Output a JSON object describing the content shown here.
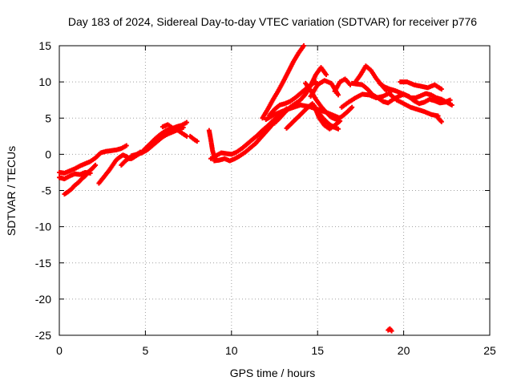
{
  "chart_data": {
    "type": "scatter",
    "title": "Day 183 of 2024, Sidereal Day-to-day VTEC variation (SDTVAR) for receiver p776",
    "xlabel": "GPS time / hours",
    "ylabel": "SDTVAR / TECUs",
    "xlim": [
      0,
      25
    ],
    "ylim": [
      -25,
      15
    ],
    "x_ticks": [
      0,
      5,
      10,
      15,
      20,
      25
    ],
    "x_tick_labels": [
      "0",
      "5",
      "10",
      "15",
      "20",
      "25"
    ],
    "y_ticks": [
      -25,
      -20,
      -15,
      -10,
      -5,
      0,
      5,
      10,
      15
    ],
    "y_tick_labels": [
      "-25",
      "-20",
      "-15",
      "-10",
      "-5",
      "0",
      "5",
      "10",
      "15"
    ],
    "grid": true,
    "legend": "none",
    "marker": "cross",
    "series_color": "#ff0000",
    "series": [
      {
        "x": [
          0.0,
          0.3,
          0.6,
          0.9,
          1.2,
          1.5,
          1.8,
          2.1,
          2.4,
          2.7,
          3.0,
          3.3,
          3.6,
          3.9
        ],
        "y": [
          -2.5,
          -2.6,
          -2.3,
          -2.0,
          -1.6,
          -1.3,
          -1.0,
          -0.5,
          0.2,
          0.4,
          0.5,
          0.6,
          0.8,
          1.2
        ]
      },
      {
        "x": [
          0.0,
          0.3,
          0.6,
          0.9,
          1.2,
          1.5,
          1.8
        ],
        "y": [
          -3.2,
          -3.4,
          -3.0,
          -2.7,
          -2.8,
          -2.5,
          -2.6
        ]
      },
      {
        "x": [
          0.3,
          0.5,
          0.7,
          0.9,
          1.1,
          1.3,
          1.5,
          1.7,
          1.9,
          2.1
        ],
        "y": [
          -5.5,
          -5.2,
          -4.8,
          -4.3,
          -3.9,
          -3.4,
          -3.0,
          -2.4,
          -2.0,
          -1.5
        ]
      },
      {
        "x": [
          2.3,
          2.5,
          2.7,
          2.9,
          3.1,
          3.3,
          3.5,
          3.7,
          3.9,
          4.1,
          4.3,
          4.5,
          4.7
        ],
        "y": [
          -4.0,
          -3.4,
          -2.8,
          -2.2,
          -1.5,
          -0.8,
          -0.4,
          -0.1,
          -0.3,
          -0.6,
          -0.2,
          0.0,
          0.3
        ]
      },
      {
        "x": [
          3.6,
          3.8,
          4.0,
          4.2,
          4.4,
          4.6,
          4.8,
          5.0,
          5.3,
          5.6,
          5.9,
          6.2,
          6.5,
          6.8,
          7.1,
          7.4
        ],
        "y": [
          -1.5,
          -1.0,
          -0.6,
          -0.6,
          -0.3,
          0.0,
          0.3,
          0.8,
          1.5,
          2.2,
          2.8,
          3.3,
          3.5,
          3.8,
          4.0,
          4.4
        ]
      },
      {
        "x": [
          4.2,
          4.5,
          4.8,
          5.1,
          5.4,
          5.7,
          6.0,
          6.3,
          6.6,
          6.9,
          7.2
        ],
        "y": [
          -0.2,
          0.0,
          0.2,
          0.6,
          1.2,
          1.8,
          2.4,
          2.8,
          3.1,
          3.4,
          3.7
        ]
      },
      {
        "x": [
          6.0,
          6.3,
          6.6,
          6.9,
          7.2,
          7.4
        ],
        "y": [
          3.8,
          4.1,
          3.6,
          3.3,
          2.8,
          2.5
        ]
      },
      {
        "x": [
          7.6,
          7.8,
          8.0
        ],
        "y": [
          2.5,
          2.1,
          1.8
        ]
      },
      {
        "x": [
          8.7,
          8.8,
          8.9,
          9.0,
          9.1
        ],
        "y": [
          3.3,
          2.0,
          0.5,
          -0.3,
          -0.8
        ]
      },
      {
        "x": [
          8.8,
          9.1,
          9.4,
          9.7,
          10.0,
          10.3,
          10.6,
          10.9,
          11.2,
          11.5,
          11.8,
          12.1,
          12.4,
          12.7,
          13.0
        ],
        "y": [
          -0.6,
          -0.2,
          0.2,
          0.1,
          0.0,
          0.3,
          0.8,
          1.4,
          2.0,
          2.6,
          3.3,
          3.9,
          4.6,
          5.2,
          5.8
        ]
      },
      {
        "x": [
          9.0,
          9.3,
          9.6,
          9.9,
          10.2,
          10.5,
          10.8,
          11.1,
          11.4,
          11.7,
          12.0,
          12.3,
          12.6,
          12.9,
          13.2
        ],
        "y": [
          -0.9,
          -0.8,
          -0.6,
          -0.9,
          -0.6,
          -0.2,
          0.3,
          0.9,
          1.5,
          2.3,
          3.1,
          3.9,
          4.8,
          5.6,
          6.3
        ]
      },
      {
        "x": [
          11.8,
          12.1,
          12.4,
          12.7,
          13.0,
          13.3,
          13.6,
          13.9,
          14.2
        ],
        "y": [
          5.0,
          6.2,
          7.5,
          8.7,
          10.0,
          11.4,
          12.8,
          14.0,
          15.0
        ]
      },
      {
        "x": [
          12.2,
          12.5,
          12.8,
          13.1,
          13.4,
          13.7,
          14.0,
          14.3,
          14.6,
          14.9
        ],
        "y": [
          5.4,
          6.2,
          6.8,
          7.0,
          7.3,
          7.8,
          8.4,
          9.0,
          9.6,
          10.0
        ]
      },
      {
        "x": [
          12.5,
          12.8,
          13.1,
          13.4,
          13.7,
          14.0,
          14.3,
          14.6,
          14.9,
          15.2,
          15.5
        ],
        "y": [
          4.3,
          5.0,
          5.8,
          6.5,
          7.0,
          7.5,
          8.3,
          9.5,
          11.0,
          12.0,
          11.0
        ]
      },
      {
        "x": [
          12.0,
          12.5,
          13.0,
          13.5,
          14.0,
          14.5,
          15.0,
          15.5,
          16.0,
          16.3
        ],
        "y": [
          4.8,
          5.5,
          6.0,
          6.4,
          6.8,
          6.6,
          6.2,
          5.8,
          5.3,
          5.0
        ]
      },
      {
        "x": [
          13.2,
          13.5,
          13.8,
          14.1,
          14.4,
          14.7,
          15.0,
          15.3,
          15.6,
          15.9,
          16.2
        ],
        "y": [
          3.6,
          4.3,
          5.0,
          5.7,
          6.4,
          7.0,
          6.0,
          5.0,
          4.3,
          3.8,
          3.5
        ]
      },
      {
        "x": [
          14.8,
          15.1,
          15.4,
          15.7,
          16.0,
          16.3
        ],
        "y": [
          6.7,
          5.0,
          4.0,
          3.5,
          4.0,
          4.6
        ]
      },
      {
        "x": [
          14.6,
          15.0,
          15.4,
          15.8,
          16.2
        ],
        "y": [
          8.0,
          9.6,
          10.2,
          9.8,
          8.2
        ]
      },
      {
        "x": [
          14.3,
          14.6,
          14.9,
          15.2,
          15.5,
          15.8,
          16.1,
          16.4,
          16.7,
          17.0
        ],
        "y": [
          9.8,
          8.8,
          7.6,
          6.6,
          5.8,
          5.1,
          4.8,
          5.2,
          5.8,
          6.5
        ]
      },
      {
        "x": [
          16.0,
          16.3,
          16.6,
          16.9
        ],
        "y": [
          8.7,
          10.0,
          10.4,
          9.6
        ]
      },
      {
        "x": [
          17.0,
          17.3,
          17.6,
          17.9,
          18.2,
          18.5,
          18.8,
          19.1,
          19.4,
          19.7,
          20.0,
          20.3,
          20.6,
          20.9,
          21.2,
          21.5,
          21.8,
          22.1,
          22.4,
          22.7
        ],
        "y": [
          9.8,
          9.7,
          9.6,
          9.0,
          8.2,
          7.8,
          7.3,
          7.1,
          7.6,
          8.0,
          8.3,
          8.0,
          7.4,
          7.0,
          7.2,
          7.6,
          7.4,
          7.1,
          7.2,
          7.5
        ]
      },
      {
        "x": [
          16.4,
          16.8,
          17.2,
          17.6,
          18.0,
          18.4,
          18.8,
          19.2
        ],
        "y": [
          6.5,
          7.2,
          7.8,
          8.3,
          8.2,
          7.8,
          8.0,
          8.5
        ]
      },
      {
        "x": [
          17.2,
          17.5,
          17.8,
          18.1,
          18.4,
          18.7,
          19.0
        ],
        "y": [
          10.0,
          11.0,
          12.2,
          11.6,
          10.5,
          9.6,
          8.8
        ]
      },
      {
        "x": [
          18.6,
          18.9,
          19.2,
          19.5,
          19.8,
          20.1,
          20.4,
          20.7,
          21.0,
          21.3,
          21.6,
          21.9,
          22.2,
          22.5,
          22.8
        ],
        "y": [
          9.8,
          9.3,
          9.0,
          8.8,
          8.5,
          8.2,
          7.8,
          7.8,
          8.1,
          8.4,
          8.2,
          7.8,
          7.6,
          7.2,
          6.8
        ]
      },
      {
        "x": [
          19.2,
          19.6,
          20.0,
          20.4,
          20.8,
          21.2,
          21.6,
          22.0
        ],
        "y": [
          8.3,
          7.5,
          7.0,
          6.5,
          6.2,
          5.9,
          5.5,
          5.3
        ]
      },
      {
        "x": [
          19.8,
          20.2,
          20.6,
          21.0,
          21.4,
          21.8,
          22.2
        ],
        "y": [
          10.0,
          10.0,
          9.6,
          9.4,
          9.2,
          9.6,
          9.0
        ]
      },
      {
        "x": [
          22.0,
          22.2
        ],
        "y": [
          5.0,
          4.5
        ]
      },
      {
        "x": [
          19.1,
          19.2,
          19.3
        ],
        "y": [
          -24.3,
          -24.1,
          -24.4
        ]
      }
    ]
  }
}
